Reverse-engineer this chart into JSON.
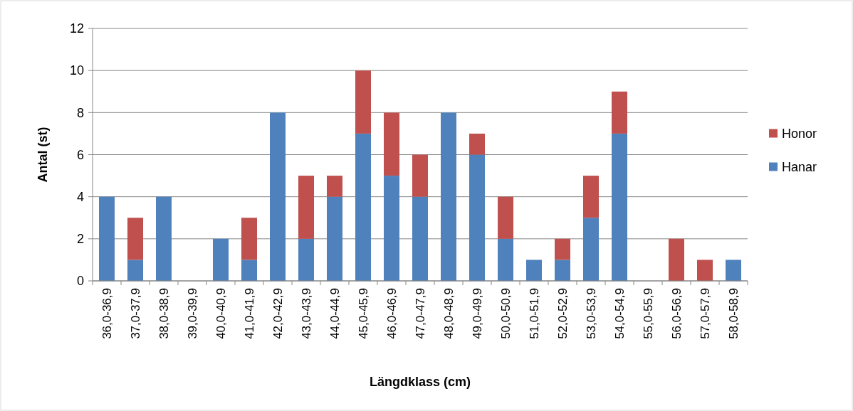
{
  "chart_data": {
    "type": "bar",
    "stacked": true,
    "xlabel": "Längdklass (cm)",
    "ylabel": "Antal (st)",
    "categories": [
      "36,0-36,9",
      "37,0-37,9",
      "38,0-38,9",
      "39,0-39,9",
      "40,0-40,9",
      "41,0-41,9",
      "42,0-42,9",
      "43,0-43,9",
      "44,0-44,9",
      "45,0-45,9",
      "46,0-46,9",
      "47,0-47,9",
      "48,0-48,9",
      "49,0-49,9",
      "50,0-50,9",
      "51,0-51,9",
      "52,0-52,9",
      "53,0-53,9",
      "54,0-54,9",
      "55,0-55,9",
      "56,0-56,9",
      "57,0-57,9",
      "58,0-58,9"
    ],
    "series": [
      {
        "name": "Hanar",
        "color": "#4f81bd",
        "values": [
          4,
          1,
          4,
          0,
          2,
          1,
          8,
          2,
          4,
          7,
          5,
          4,
          8,
          6,
          2,
          1,
          1,
          3,
          7,
          0,
          0,
          0,
          1
        ]
      },
      {
        "name": "Honor",
        "color": "#c0504d",
        "values": [
          0,
          2,
          0,
          0,
          0,
          2,
          0,
          3,
          1,
          3,
          3,
          2,
          0,
          1,
          2,
          0,
          1,
          2,
          2,
          0,
          2,
          1,
          0
        ]
      }
    ],
    "ylim": [
      0,
      12
    ],
    "yticks": [
      0,
      2,
      4,
      6,
      8,
      10,
      12
    ],
    "grid": "y",
    "legend": "right"
  }
}
